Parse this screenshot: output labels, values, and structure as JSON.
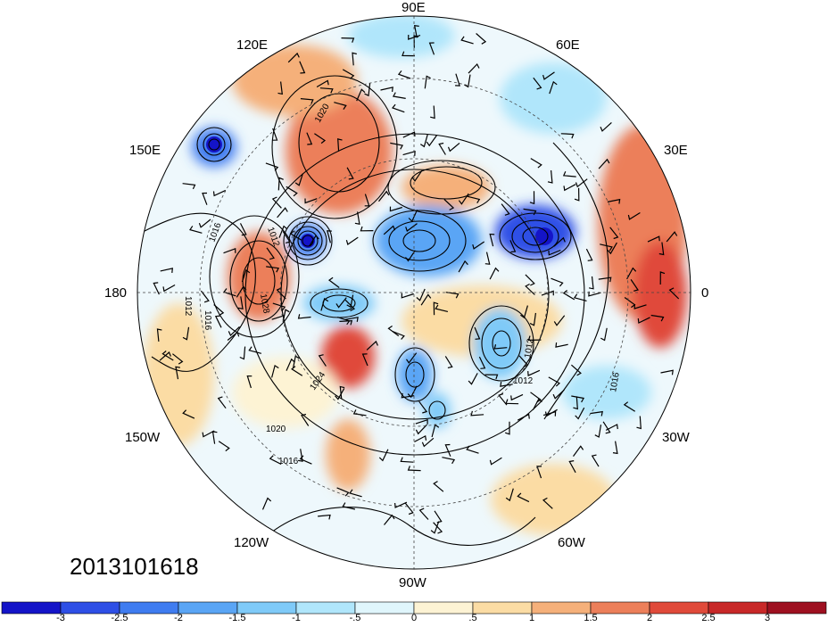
{
  "map": {
    "projection": "north-polar-stereographic",
    "timestamp": "2013101618",
    "longitude_labels": {
      "lon_0": "0",
      "lon_30e": "30E",
      "lon_60e": "60E",
      "lon_90e": "90E",
      "lon_120e": "120E",
      "lon_150e": "150E",
      "lon_180": "180",
      "lon_150w": "150W",
      "lon_120w": "120W",
      "lon_90w": "90W",
      "lon_60w": "60W",
      "lon_30w": "30W"
    },
    "contour_labels": {
      "c1016_a": "1016",
      "c1012_a": "1012",
      "c1016_b": "1016",
      "c1012_b": "1012",
      "c1012_c": "1012",
      "c1024": "1024",
      "c1020_a": "1020",
      "c1020_b": "1020",
      "c1016_c": "1016",
      "c1012_d": "1012",
      "c1028": "1028",
      "c1016_d": "1016"
    },
    "colorbar": {
      "colors": [
        "#1414c8",
        "#2e4fe6",
        "#3f7cf0",
        "#5aa5f5",
        "#7fcaf8",
        "#b0e6fb",
        "#e0f6fc",
        "#fdf3d4",
        "#fbdca4",
        "#f5b07a",
        "#ec7f5a",
        "#e04a3a",
        "#c82828",
        "#9e1020"
      ],
      "tick_labels": [
        "-3",
        "-2.5",
        "-2",
        "-1.5",
        "-1",
        "-.5",
        "0",
        ".5",
        "1",
        "1.5",
        "2",
        "2.5",
        "3"
      ]
    }
  }
}
